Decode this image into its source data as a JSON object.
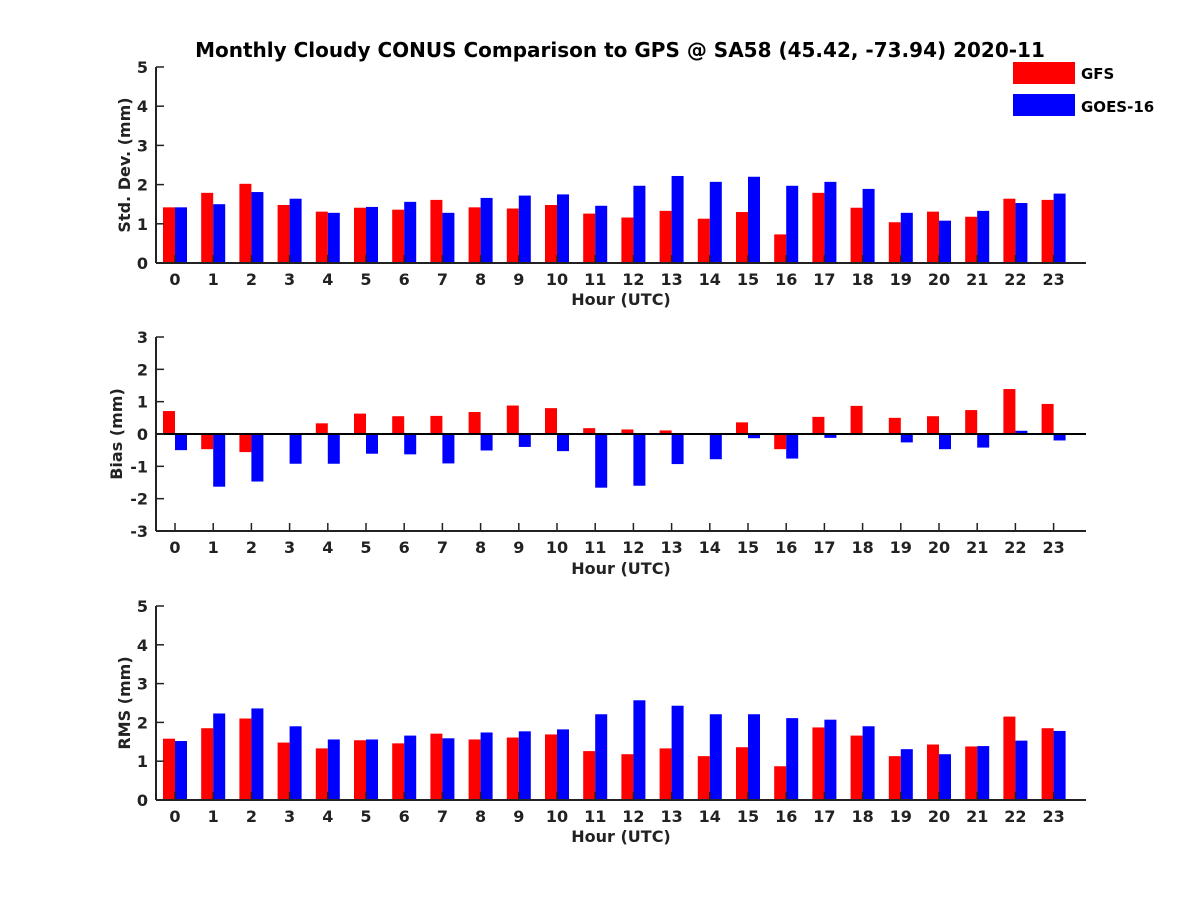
{
  "title": "Monthly Cloudy CONUS Comparison to GPS @ SA58 (45.42, -73.94) 2020-11",
  "legend": [
    {
      "name": "GFS",
      "color": "#ff0000"
    },
    {
      "name": "GOES-16",
      "color": "#0000ff"
    }
  ],
  "chart_data": [
    {
      "type": "bar",
      "xlabel": "Hour (UTC)",
      "ylabel": "Std. Dev. (mm)",
      "ylim": [
        0,
        5
      ],
      "yticks": [
        0,
        1,
        2,
        3,
        4,
        5
      ],
      "categories": [
        "0",
        "1",
        "2",
        "3",
        "4",
        "5",
        "6",
        "7",
        "8",
        "9",
        "10",
        "11",
        "12",
        "13",
        "14",
        "15",
        "16",
        "17",
        "18",
        "19",
        "20",
        "21",
        "22",
        "23"
      ],
      "series": [
        {
          "name": "GFS",
          "color": "#ff0000",
          "values": [
            1.42,
            1.79,
            2.02,
            1.48,
            1.31,
            1.41,
            1.36,
            1.61,
            1.42,
            1.39,
            1.48,
            1.26,
            1.16,
            1.33,
            1.13,
            1.3,
            0.73,
            1.79,
            1.41,
            1.04,
            1.31,
            1.18,
            1.64,
            1.61
          ]
        },
        {
          "name": "GOES-16",
          "color": "#0000ff",
          "values": [
            1.42,
            1.5,
            1.81,
            1.64,
            1.28,
            1.43,
            1.56,
            1.28,
            1.66,
            1.72,
            1.75,
            1.46,
            1.97,
            2.22,
            2.07,
            2.2,
            1.97,
            2.07,
            1.89,
            1.28,
            1.08,
            1.33,
            1.53,
            1.77
          ]
        }
      ]
    },
    {
      "type": "bar",
      "xlabel": "Hour (UTC)",
      "ylabel": "Bias (mm)",
      "ylim": [
        -3,
        3
      ],
      "yticks": [
        -3,
        -2,
        -1,
        0,
        1,
        2,
        3
      ],
      "categories": [
        "0",
        "1",
        "2",
        "3",
        "4",
        "5",
        "6",
        "7",
        "8",
        "9",
        "10",
        "11",
        "12",
        "13",
        "14",
        "15",
        "16",
        "17",
        "18",
        "19",
        "20",
        "21",
        "22",
        "23"
      ],
      "series": [
        {
          "name": "GFS",
          "color": "#ff0000",
          "values": [
            0.71,
            -0.47,
            -0.56,
            0.0,
            0.33,
            0.63,
            0.55,
            0.56,
            0.68,
            0.88,
            0.8,
            0.18,
            0.14,
            0.11,
            0.03,
            0.36,
            -0.47,
            0.53,
            0.87,
            0.5,
            0.55,
            0.74,
            1.39,
            0.93
          ]
        },
        {
          "name": "GOES-16",
          "color": "#0000ff",
          "values": [
            -0.5,
            -1.63,
            -1.47,
            -0.92,
            -0.92,
            -0.61,
            -0.63,
            -0.91,
            -0.51,
            -0.4,
            -0.53,
            -1.66,
            -1.6,
            -0.93,
            -0.78,
            -0.13,
            -0.76,
            -0.12,
            0.03,
            -0.26,
            -0.47,
            -0.42,
            0.1,
            -0.2
          ]
        }
      ]
    },
    {
      "type": "bar",
      "xlabel": "Hour (UTC)",
      "ylabel": "RMS (mm)",
      "ylim": [
        0,
        5
      ],
      "yticks": [
        0,
        1,
        2,
        3,
        4,
        5
      ],
      "categories": [
        "0",
        "1",
        "2",
        "3",
        "4",
        "5",
        "6",
        "7",
        "8",
        "9",
        "10",
        "11",
        "12",
        "13",
        "14",
        "15",
        "16",
        "17",
        "18",
        "19",
        "20",
        "21",
        "22",
        "23"
      ],
      "series": [
        {
          "name": "GFS",
          "color": "#ff0000",
          "values": [
            1.58,
            1.85,
            2.1,
            1.48,
            1.33,
            1.54,
            1.46,
            1.71,
            1.56,
            1.61,
            1.69,
            1.26,
            1.18,
            1.33,
            1.13,
            1.36,
            0.87,
            1.87,
            1.66,
            1.13,
            1.43,
            1.38,
            2.15,
            1.85
          ]
        },
        {
          "name": "GOES-16",
          "color": "#0000ff",
          "values": [
            1.52,
            2.23,
            2.36,
            1.9,
            1.56,
            1.56,
            1.66,
            1.59,
            1.74,
            1.77,
            1.82,
            2.21,
            2.57,
            2.43,
            2.21,
            2.21,
            2.11,
            2.07,
            1.9,
            1.31,
            1.18,
            1.39,
            1.53,
            1.78
          ]
        }
      ]
    }
  ]
}
